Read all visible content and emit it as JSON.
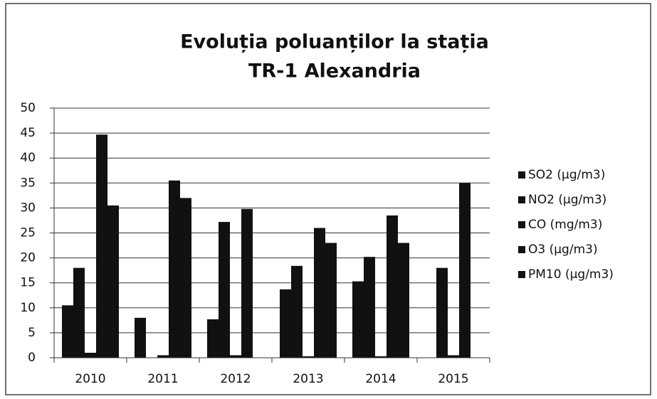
{
  "chart_data": {
    "type": "bar",
    "title": [
      "Evoluția poluanților la stația",
      "TR-1 Alexandria"
    ],
    "categories": [
      "2010",
      "2011",
      "2012",
      "2013",
      "2014",
      "2015"
    ],
    "series": [
      {
        "name": "SO2  (µg/m3)",
        "color": "#111111",
        "values": [
          10.5,
          8,
          7.7,
          13.7,
          15.3,
          null
        ]
      },
      {
        "name": "NO2  (µg/m3)",
        "color": "#111111",
        "values": [
          18,
          null,
          27.2,
          18.4,
          20.2,
          18
        ]
      },
      {
        "name": "CO  (mg/m3)",
        "color": "#111111",
        "values": [
          1,
          0.5,
          0.5,
          0.3,
          0.3,
          0.5
        ]
      },
      {
        "name": "O3 (µg/m3)",
        "color": "#111111",
        "values": [
          44.7,
          35.5,
          29.8,
          26,
          28.5,
          35
        ]
      },
      {
        "name": "PM10  (µg/m3)",
        "color": "#111111",
        "values": [
          30.5,
          32,
          null,
          23,
          23,
          null
        ]
      }
    ],
    "ylim": [
      0,
      50
    ],
    "yticks": [
      0,
      5,
      10,
      15,
      20,
      25,
      30,
      35,
      40,
      45,
      50
    ],
    "grid": true,
    "legend": "right"
  }
}
